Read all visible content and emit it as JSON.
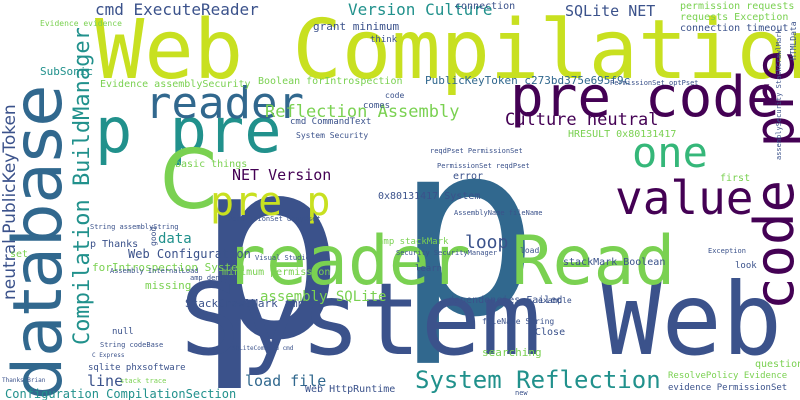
{
  "palette": {
    "dark": "#440154",
    "indigo": "#3b528b",
    "blue": "#31688e",
    "teal": "#21918c",
    "green": "#35b779",
    "lime": "#7ad151",
    "yellow": "#c8e020"
  },
  "words": [
    {
      "text": "p",
      "color": "#3b528b"
    },
    {
      "text": "p",
      "color": "#31688e"
    },
    {
      "text": "System Web",
      "color": "#3b528b"
    },
    {
      "text": "Web Compilation",
      "color": "#c8e020"
    },
    {
      "text": "reader Read",
      "color": "#7ad151"
    },
    {
      "text": "database",
      "color": "#31688e"
    },
    {
      "text": "p pre",
      "color": "#21918c"
    },
    {
      "text": "pre code",
      "color": "#440154"
    },
    {
      "text": "code pre",
      "color": "#440154"
    },
    {
      "text": "C",
      "color": "#7ad151"
    },
    {
      "text": "reader",
      "color": "#31688e"
    },
    {
      "text": "value",
      "color": "#440154"
    },
    {
      "text": "pre p",
      "color": "#c8e020"
    },
    {
      "text": "one",
      "color": "#35b779"
    },
    {
      "text": "System Reflection",
      "color": "#21918c"
    },
    {
      "text": "Compilation BuildManager",
      "color": "#21918c"
    },
    {
      "text": "neutral PublicKeyToken",
      "color": "#3b528b"
    },
    {
      "text": "Reflection Assembly",
      "color": "#7ad151"
    },
    {
      "text": "Version Culture",
      "color": "#21918c"
    },
    {
      "text": "cmd ExecuteReader",
      "color": "#3b528b"
    },
    {
      "text": "SQLite NET",
      "color": "#3b528b"
    },
    {
      "text": "Culture neutral",
      "color": "#440154"
    },
    {
      "text": "NET Version",
      "color": "#440154"
    },
    {
      "text": "loop",
      "color": "#3b528b"
    },
    {
      "text": "load file",
      "color": "#31688e"
    },
    {
      "text": "data",
      "color": "#21918c"
    },
    {
      "text": "line",
      "color": "#3b528b"
    },
    {
      "text": "assembly SQLite",
      "color": "#7ad151"
    },
    {
      "text": "Web Configuration",
      "color": "#3b528b"
    },
    {
      "text": "Configuration CompilationSection",
      "color": "#21918c"
    },
    {
      "text": "StackCrawlMark amp",
      "color": "#3b528b"
    },
    {
      "text": "PublicKeyToken c273bd375e695f9c",
      "color": "#31688e"
    },
    {
      "text": "grant minimum",
      "color": "#3b528b"
    },
    {
      "text": "Evidence assemblySecurity",
      "color": "#7ad151"
    },
    {
      "text": "Boolean forIntrospection",
      "color": "#7ad151"
    },
    {
      "text": "forIntrospection System",
      "color": "#7ad151"
    },
    {
      "text": "0x80131417 System",
      "color": "#3b528b"
    },
    {
      "text": "dependencies Failed",
      "color": "#3b528b"
    },
    {
      "text": "stackMark Boolean",
      "color": "#3b528b"
    },
    {
      "text": "missing",
      "color": "#7ad151"
    },
    {
      "text": "error",
      "color": "#3b528b"
    },
    {
      "text": "basic things",
      "color": "#7ad151"
    },
    {
      "text": "Web HttpRuntime",
      "color": "#3b528b"
    },
    {
      "text": "minimum permission",
      "color": "#7ad151"
    },
    {
      "text": "HRESULT 0x80131417",
      "color": "#7ad151"
    },
    {
      "text": "first",
      "color": "#7ad151"
    },
    {
      "text": "connection",
      "color": "#3b528b"
    },
    {
      "text": "p Thanks",
      "color": "#3b528b"
    },
    {
      "text": "SubSonic",
      "color": "#21918c"
    },
    {
      "text": "permission requests",
      "color": "#7ad151"
    },
    {
      "text": "requests Exception",
      "color": "#7ad151"
    },
    {
      "text": "connection timeout",
      "color": "#3b528b"
    },
    {
      "text": "Evidence evidence",
      "color": "#7ad151"
    },
    {
      "text": "ResolvePolicy Evidence",
      "color": "#7ad151"
    },
    {
      "text": "evidence PermissionSet",
      "color": "#3b528b"
    },
    {
      "text": "searching",
      "color": "#7ad151"
    },
    {
      "text": "question",
      "color": "#7ad151"
    },
    {
      "text": "Close",
      "color": "#3b528b"
    },
    {
      "text": "think",
      "color": "#3b528b"
    },
    {
      "text": "comes",
      "color": "#3b528b"
    },
    {
      "text": "cmd CommandText",
      "color": "#3b528b"
    },
    {
      "text": "System Security",
      "color": "#3b528b"
    },
    {
      "text": "PermissionSet optPset",
      "color": "#3b528b"
    },
    {
      "text": "reqdPset PermissionSet",
      "color": "#3b528b"
    },
    {
      "text": "PermissionSet reqdPset",
      "color": "#3b528b"
    },
    {
      "text": "PermissionSet denyPset",
      "color": "#3b528b"
    },
    {
      "text": "AssemblyName fileName",
      "color": "#3b528b"
    },
    {
      "text": "Security SecurityManager",
      "color": "#3b528b"
    },
    {
      "text": "Assembly InternalLoad",
      "color": "#3b528b"
    },
    {
      "text": "amp denied",
      "color": "#3b528b"
    },
    {
      "text": "amp stackMark",
      "color": "#7ad151"
    },
    {
      "text": "assemblySecurity StackCrawlMark",
      "color": "#3b528b"
    },
    {
      "text": "HTMLData",
      "color": "#3b528b"
    },
    {
      "text": "Visual Studio",
      "color": "#3b528b"
    },
    {
      "text": "String assemblyString",
      "color": "#3b528b"
    },
    {
      "text": "null",
      "color": "#3b528b"
    },
    {
      "text": "good",
      "color": "#3b528b"
    },
    {
      "text": "learn",
      "color": "#3b528b"
    },
    {
      "text": "load",
      "color": "#3b528b"
    },
    {
      "text": "look",
      "color": "#3b528b"
    },
    {
      "text": "example",
      "color": "#3b528b"
    },
    {
      "text": "code",
      "color": "#3b528b"
    },
    {
      "text": "fileName String",
      "color": "#3b528b"
    },
    {
      "text": "sqlite phxsoftware",
      "color": "#3b528b"
    },
    {
      "text": "stack trace",
      "color": "#7ad151"
    },
    {
      "text": "Thanks Brian",
      "color": "#3b528b"
    },
    {
      "text": "String codeBase",
      "color": "#3b528b"
    },
    {
      "text": "SQLiteCommand cmd",
      "color": "#3b528b"
    },
    {
      "text": "Exception",
      "color": "#3b528b"
    },
    {
      "text": "new",
      "color": "#3b528b"
    },
    {
      "text": "set",
      "color": "#7ad151"
    },
    {
      "text": "C Express",
      "color": "#3b528b"
    }
  ]
}
